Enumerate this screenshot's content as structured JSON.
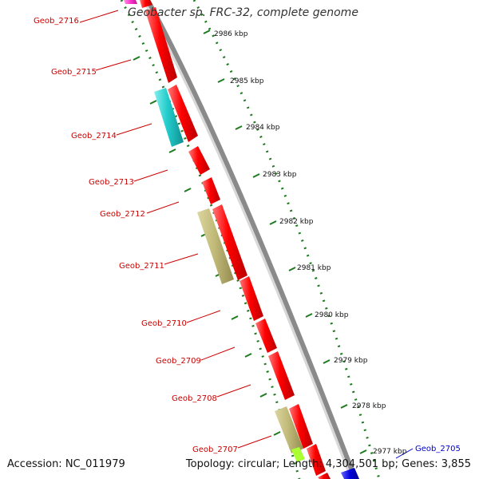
{
  "title": "Geobacter sp. FRC-32, complete genome",
  "footer": {
    "accession": "Accession: NC_011979",
    "summary": "Topology: circular; Length: 4,304,501 bp; Genes: 3,855"
  },
  "colors": {
    "gene_forward": "#ff0000",
    "gene_cyan": "#22cccc",
    "gene_khaki": "#c2bb7a",
    "gene_magenta": "#ff33cc",
    "gene_blue": "#0000dd",
    "gene_green": "#aaff33",
    "backbone": "#888888",
    "tick": "#1e7a1e",
    "label_red": "#cc0000",
    "label_blue": "#0000cc"
  },
  "gene_labels": [
    "Geob_2716",
    "Geob_2715",
    "Geob_2714",
    "Geob_2713",
    "Geob_2712",
    "Geob_2711",
    "Geob_2710",
    "Geob_2709",
    "Geob_2708",
    "Geob_2707",
    "Geob_2705"
  ],
  "kbp_labels": [
    "2986 kbp",
    "2985 kbp",
    "2984 kbp",
    "2983 kbp",
    "2982 kbp",
    "2981 kbp",
    "2980 kbp",
    "2979 kbp",
    "2978 kbp",
    "2977 kbp"
  ]
}
